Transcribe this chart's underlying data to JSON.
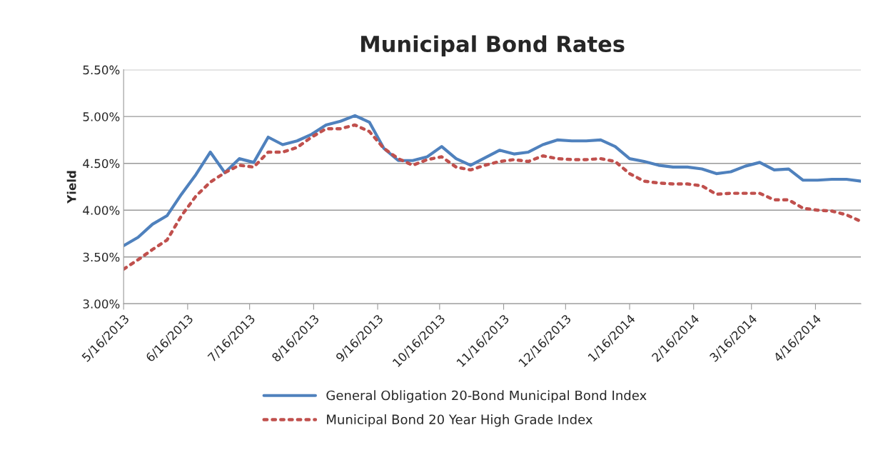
{
  "chart_data": {
    "type": "line",
    "title": "Municipal Bond Rates",
    "ylabel": "Yield",
    "x": [
      "2013-05-16",
      "2013-05-23",
      "2013-05-30",
      "2013-06-06",
      "2013-06-13",
      "2013-06-20",
      "2013-06-27",
      "2013-07-04",
      "2013-07-11",
      "2013-07-18",
      "2013-07-25",
      "2013-08-01",
      "2013-08-08",
      "2013-08-15",
      "2013-08-22",
      "2013-08-29",
      "2013-09-05",
      "2013-09-12",
      "2013-09-19",
      "2013-09-26",
      "2013-10-03",
      "2013-10-10",
      "2013-10-17",
      "2013-10-24",
      "2013-10-31",
      "2013-11-07",
      "2013-11-14",
      "2013-11-21",
      "2013-11-28",
      "2013-12-05",
      "2013-12-12",
      "2013-12-19",
      "2013-12-26",
      "2014-01-02",
      "2014-01-09",
      "2014-01-16",
      "2014-01-23",
      "2014-01-30",
      "2014-02-06",
      "2014-02-13",
      "2014-02-20",
      "2014-02-27",
      "2014-03-06",
      "2014-03-13",
      "2014-03-20",
      "2014-03-27",
      "2014-04-03",
      "2014-04-10",
      "2014-04-17",
      "2014-04-24",
      "2014-05-01",
      "2014-05-08"
    ],
    "series": [
      {
        "name": "General Obligation 20-Bond Municipal Bond Index",
        "color": "#4f81bd",
        "line_style": "solid",
        "values": [
          3.62,
          3.71,
          3.85,
          3.94,
          4.17,
          4.38,
          4.62,
          4.4,
          4.55,
          4.51,
          4.78,
          4.7,
          4.74,
          4.81,
          4.91,
          4.95,
          5.01,
          4.94,
          4.66,
          4.53,
          4.53,
          4.57,
          4.68,
          4.55,
          4.48,
          4.56,
          4.64,
          4.6,
          4.62,
          4.7,
          4.75,
          4.74,
          4.74,
          4.75,
          4.68,
          4.55,
          4.52,
          4.48,
          4.46,
          4.46,
          4.44,
          4.39,
          4.41,
          4.47,
          4.51,
          4.43,
          4.44,
          4.32,
          4.32,
          4.33,
          4.33,
          4.31
        ]
      },
      {
        "name": "Municipal Bond 20 Year High Grade Index",
        "color": "#c0504d",
        "line_style": "dotted",
        "values": [
          3.37,
          3.47,
          3.58,
          3.68,
          3.94,
          4.15,
          4.3,
          4.4,
          4.48,
          4.46,
          4.62,
          4.62,
          4.67,
          4.78,
          4.87,
          4.87,
          4.91,
          4.84,
          4.66,
          4.55,
          4.48,
          4.54,
          4.57,
          4.46,
          4.43,
          4.48,
          4.52,
          4.54,
          4.52,
          4.58,
          4.55,
          4.54,
          4.54,
          4.55,
          4.52,
          4.39,
          4.31,
          4.29,
          4.28,
          4.28,
          4.26,
          4.17,
          4.18,
          4.18,
          4.18,
          4.11,
          4.11,
          4.02,
          4.0,
          3.99,
          3.95,
          3.88
        ]
      }
    ],
    "xlim": [
      "2013-05-16",
      "2014-05-08"
    ],
    "xticks": [
      {
        "value": "2013-05-16",
        "label": "5/16/2013"
      },
      {
        "value": "2013-06-16",
        "label": "6/16/2013"
      },
      {
        "value": "2013-07-16",
        "label": "7/16/2013"
      },
      {
        "value": "2013-08-16",
        "label": "8/16/2013"
      },
      {
        "value": "2013-09-16",
        "label": "9/16/2013"
      },
      {
        "value": "2013-10-16",
        "label": "10/16/2013"
      },
      {
        "value": "2013-11-16",
        "label": "11/16/2013"
      },
      {
        "value": "2013-12-16",
        "label": "12/16/2013"
      },
      {
        "value": "2014-01-16",
        "label": "1/16/2014"
      },
      {
        "value": "2014-02-16",
        "label": "2/16/2014"
      },
      {
        "value": "2014-03-16",
        "label": "3/16/2014"
      },
      {
        "value": "2014-04-16",
        "label": "4/16/2014"
      }
    ],
    "ylim": [
      3.0,
      5.5
    ],
    "yticks": [
      {
        "value": 3.0,
        "label": "3.00%"
      },
      {
        "value": 3.5,
        "label": "3.50%"
      },
      {
        "value": 4.0,
        "label": "4.00%"
      },
      {
        "value": 4.5,
        "label": "4.50%"
      },
      {
        "value": 5.0,
        "label": "5.00%"
      },
      {
        "value": 5.5,
        "label": "5.50%"
      }
    ],
    "grid": "y",
    "legend": "bottom",
    "marker": "none"
  }
}
